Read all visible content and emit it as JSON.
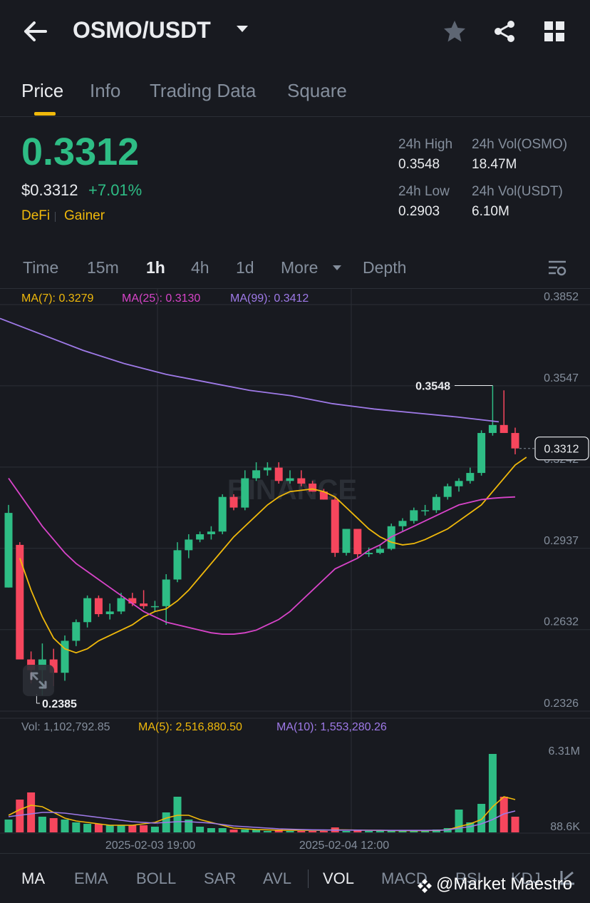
{
  "header": {
    "pair": "OSMO/USDT",
    "icons": [
      "back-arrow-icon",
      "caret-down-icon",
      "star-icon",
      "share-icon",
      "grid-icon"
    ]
  },
  "tabs": [
    {
      "label": "Price",
      "active": true
    },
    {
      "label": "Info",
      "active": false
    },
    {
      "label": "Trading Data",
      "active": false
    },
    {
      "label": "Square",
      "active": false
    }
  ],
  "price": {
    "last": "0.3312",
    "usd": "$0.3312",
    "change": "+7.01%",
    "tags": [
      "DeFi",
      "Gainer"
    ]
  },
  "stats": {
    "high_label": "24h High",
    "high": "0.3548",
    "low_label": "24h Low",
    "low": "0.2903",
    "vol_base_label": "24h Vol(OSMO)",
    "vol_base": "18.47M",
    "vol_quote_label": "24h Vol(USDT)",
    "vol_quote": "6.10M"
  },
  "intervals": {
    "items": [
      "Time",
      "15m",
      "1h",
      "4h",
      "1d",
      "More",
      "Depth"
    ],
    "active": "1h"
  },
  "ma_legend": {
    "ma7": "MA(7): 0.3279",
    "ma25": "MA(25): 0.3130",
    "ma99": "MA(99): 0.3412"
  },
  "vol_legend": {
    "vol": "Vol: 1,102,792.85",
    "ma5": "MA(5): 2,516,880.50",
    "ma10": "MA(10): 1,553,280.26"
  },
  "watermark": "BINANCE",
  "colors": {
    "up": "#2ebd85",
    "down": "#f6465d",
    "ma7": "#f0b90b",
    "ma25": "#d844c9",
    "ma99": "#9f7ae8",
    "bg": "#181a20"
  },
  "chart_data": {
    "type": "candlestick",
    "y_ticks": [
      "0.3852",
      "0.3547",
      "0.3242",
      "0.2937",
      "0.2632",
      "0.2326"
    ],
    "ylim": [
      0.2326,
      0.3852
    ],
    "x_ticks": [
      "2025-02-03 19:00",
      "2025-02-04 12:00"
    ],
    "high_marker": "0.3548",
    "low_marker": "0.2385",
    "current_price_label": "0.3312",
    "volume_ticks": [
      "6.31M",
      "88.6K"
    ],
    "candles": [
      {
        "o": 0.279,
        "h": 0.31,
        "l": 0.279,
        "c": 0.307
      },
      {
        "o": 0.295,
        "h": 0.296,
        "l": 0.252,
        "c": 0.252
      },
      {
        "o": 0.252,
        "h": 0.255,
        "l": 0.243,
        "c": 0.248
      },
      {
        "o": 0.248,
        "h": 0.258,
        "l": 0.2385,
        "c": 0.252
      },
      {
        "o": 0.252,
        "h": 0.256,
        "l": 0.242,
        "c": 0.247
      },
      {
        "o": 0.247,
        "h": 0.261,
        "l": 0.244,
        "c": 0.259
      },
      {
        "o": 0.259,
        "h": 0.267,
        "l": 0.257,
        "c": 0.266
      },
      {
        "o": 0.266,
        "h": 0.276,
        "l": 0.264,
        "c": 0.275
      },
      {
        "o": 0.275,
        "h": 0.276,
        "l": 0.268,
        "c": 0.269
      },
      {
        "o": 0.269,
        "h": 0.273,
        "l": 0.267,
        "c": 0.27
      },
      {
        "o": 0.27,
        "h": 0.277,
        "l": 0.269,
        "c": 0.275
      },
      {
        "o": 0.275,
        "h": 0.277,
        "l": 0.272,
        "c": 0.273
      },
      {
        "o": 0.273,
        "h": 0.278,
        "l": 0.271,
        "c": 0.272
      },
      {
        "o": 0.272,
        "h": 0.274,
        "l": 0.27,
        "c": 0.272
      },
      {
        "o": 0.272,
        "h": 0.284,
        "l": 0.265,
        "c": 0.282
      },
      {
        "o": 0.282,
        "h": 0.296,
        "l": 0.281,
        "c": 0.293
      },
      {
        "o": 0.293,
        "h": 0.299,
        "l": 0.29,
        "c": 0.297
      },
      {
        "o": 0.297,
        "h": 0.3,
        "l": 0.296,
        "c": 0.299
      },
      {
        "o": 0.299,
        "h": 0.302,
        "l": 0.297,
        "c": 0.3
      },
      {
        "o": 0.3,
        "h": 0.314,
        "l": 0.299,
        "c": 0.313
      },
      {
        "o": 0.313,
        "h": 0.314,
        "l": 0.308,
        "c": 0.309
      },
      {
        "o": 0.309,
        "h": 0.323,
        "l": 0.308,
        "c": 0.32
      },
      {
        "o": 0.32,
        "h": 0.326,
        "l": 0.319,
        "c": 0.323
      },
      {
        "o": 0.323,
        "h": 0.326,
        "l": 0.321,
        "c": 0.324
      },
      {
        "o": 0.324,
        "h": 0.326,
        "l": 0.318,
        "c": 0.319
      },
      {
        "o": 0.319,
        "h": 0.323,
        "l": 0.318,
        "c": 0.32
      },
      {
        "o": 0.32,
        "h": 0.323,
        "l": 0.317,
        "c": 0.318
      },
      {
        "o": 0.318,
        "h": 0.319,
        "l": 0.315,
        "c": 0.315
      },
      {
        "o": 0.315,
        "h": 0.316,
        "l": 0.312,
        "c": 0.312
      },
      {
        "o": 0.312,
        "h": 0.313,
        "l": 0.2905,
        "c": 0.292
      },
      {
        "o": 0.292,
        "h": 0.301,
        "l": 0.291,
        "c": 0.301
      },
      {
        "o": 0.301,
        "h": 0.301,
        "l": 0.2903,
        "c": 0.2915
      },
      {
        "o": 0.2915,
        "h": 0.294,
        "l": 0.2905,
        "c": 0.292
      },
      {
        "o": 0.292,
        "h": 0.295,
        "l": 0.2915,
        "c": 0.2935
      },
      {
        "o": 0.2935,
        "h": 0.303,
        "l": 0.293,
        "c": 0.302
      },
      {
        "o": 0.302,
        "h": 0.305,
        "l": 0.3,
        "c": 0.304
      },
      {
        "o": 0.304,
        "h": 0.309,
        "l": 0.303,
        "c": 0.308
      },
      {
        "o": 0.308,
        "h": 0.31,
        "l": 0.306,
        "c": 0.308
      },
      {
        "o": 0.308,
        "h": 0.314,
        "l": 0.307,
        "c": 0.313
      },
      {
        "o": 0.313,
        "h": 0.318,
        "l": 0.312,
        "c": 0.317
      },
      {
        "o": 0.317,
        "h": 0.32,
        "l": 0.315,
        "c": 0.319
      },
      {
        "o": 0.319,
        "h": 0.324,
        "l": 0.318,
        "c": 0.322
      },
      {
        "o": 0.322,
        "h": 0.338,
        "l": 0.321,
        "c": 0.337
      },
      {
        "o": 0.337,
        "h": 0.3548,
        "l": 0.336,
        "c": 0.34
      },
      {
        "o": 0.34,
        "h": 0.353,
        "l": 0.337,
        "c": 0.337
      },
      {
        "o": 0.337,
        "h": 0.339,
        "l": 0.329,
        "c": 0.3312
      }
    ],
    "ma7": [
      0.29,
      0.278,
      0.268,
      0.26,
      0.256,
      0.2545,
      0.256,
      0.259,
      0.261,
      0.263,
      0.265,
      0.268,
      0.27,
      0.271,
      0.274,
      0.278,
      0.283,
      0.288,
      0.293,
      0.298,
      0.302,
      0.306,
      0.31,
      0.313,
      0.315,
      0.3155,
      0.316,
      0.315,
      0.313,
      0.309,
      0.305,
      0.301,
      0.298,
      0.296,
      0.295,
      0.2955,
      0.297,
      0.299,
      0.301,
      0.304,
      0.307,
      0.31,
      0.315,
      0.32,
      0.325,
      0.3279
    ],
    "ma25": [
      0.32,
      0.314,
      0.308,
      0.302,
      0.297,
      0.292,
      0.288,
      0.285,
      0.282,
      0.279,
      0.276,
      0.273,
      0.27,
      0.268,
      0.266,
      0.265,
      0.264,
      0.263,
      0.262,
      0.2615,
      0.2615,
      0.262,
      0.263,
      0.265,
      0.267,
      0.27,
      0.274,
      0.278,
      0.282,
      0.286,
      0.288,
      0.29,
      0.293,
      0.295,
      0.298,
      0.3,
      0.302,
      0.304,
      0.306,
      0.308,
      0.31,
      0.311,
      0.312,
      0.3125,
      0.3128,
      0.313
    ],
    "ma99": [
      0.38,
      0.374,
      0.368,
      0.363,
      0.359,
      0.356,
      0.353,
      0.351,
      0.348,
      0.346,
      0.3445,
      0.343,
      0.3412
    ],
    "volume": [
      0.9,
      2.3,
      2.8,
      1.1,
      1.0,
      0.9,
      0.7,
      0.6,
      0.6,
      0.5,
      0.5,
      0.5,
      0.5,
      0.4,
      1.4,
      2.5,
      0.9,
      0.4,
      0.3,
      0.3,
      0.2,
      0.2,
      0.2,
      0.1,
      0.2,
      0.1,
      0.1,
      0.1,
      0.1,
      0.35,
      0.1,
      0.2,
      0.1,
      0.1,
      0.1,
      0.1,
      0.1,
      0.1,
      0.2,
      0.3,
      1.6,
      0.7,
      2.0,
      5.5,
      2.5,
      1.1
    ]
  },
  "indicators": {
    "items": [
      "MA",
      "EMA",
      "BOLL",
      "SAR",
      "AVL",
      "VOL",
      "MACD",
      "RSI",
      "KDJ"
    ],
    "active": [
      "MA",
      "VOL"
    ]
  },
  "footer_watermark": "@Market Maestro"
}
